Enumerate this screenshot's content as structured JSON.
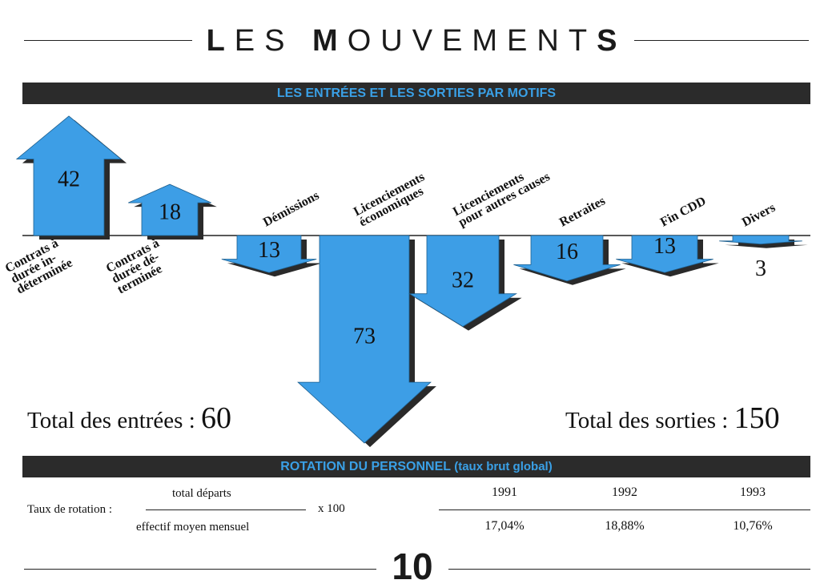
{
  "page": {
    "title_parts": [
      "L",
      "ES ",
      "M",
      "OUVEMENT",
      "S"
    ],
    "number": "10"
  },
  "section1": {
    "title": "LES ENTRÉES ET LES SORTIES PAR MOTIFS"
  },
  "colors": {
    "arrow_fill": "#3d9ee6",
    "arrow_shadow": "#2a2a2a",
    "band": "#2b2b2b",
    "band_text": "#3aa0e6"
  },
  "chart_data": {
    "type": "bar",
    "categories": [
      "Contrats à durée indéterminée",
      "Contrats à durée déterminée",
      "Démissions",
      "Licenciements économiques",
      "Licenciements pour autres causes",
      "Retraites",
      "Fin CDD",
      "Divers"
    ],
    "category_lines": [
      [
        "Contrats à",
        "durée in-",
        "déterminée"
      ],
      [
        "Contrats à",
        "durée dé-",
        "terminée"
      ],
      [
        "Démissions"
      ],
      [
        "Licenciements",
        "économiques"
      ],
      [
        "Licenciements",
        "pour autres causes"
      ],
      [
        "Retraites"
      ],
      [
        "Fin CDD"
      ],
      [
        "Divers"
      ]
    ],
    "values": [
      42,
      18,
      -13,
      -73,
      -32,
      -16,
      -13,
      -3
    ],
    "labels": [
      "42",
      "18",
      "13",
      "73",
      "32",
      "16",
      "13",
      "3"
    ],
    "groups": [
      "entrées",
      "entrées",
      "sorties",
      "sorties",
      "sorties",
      "sorties",
      "sorties",
      "sorties"
    ]
  },
  "totals": {
    "entrees_label": "Total des entrées : ",
    "entrees_value": "60",
    "sorties_label": "Total des sorties : ",
    "sorties_value": "150"
  },
  "section2": {
    "title": "ROTATION DU PERSONNEL",
    "subtitle": "(taux brut global)",
    "formula": {
      "label": "Taux de rotation :",
      "numerator": "total départs",
      "denominator": "effectif moyen mensuel",
      "multiplier": "x 100"
    },
    "years": [
      "1991",
      "1992",
      "1993"
    ],
    "rates": [
      "17,04%",
      "18,88%",
      "10,76%"
    ]
  }
}
